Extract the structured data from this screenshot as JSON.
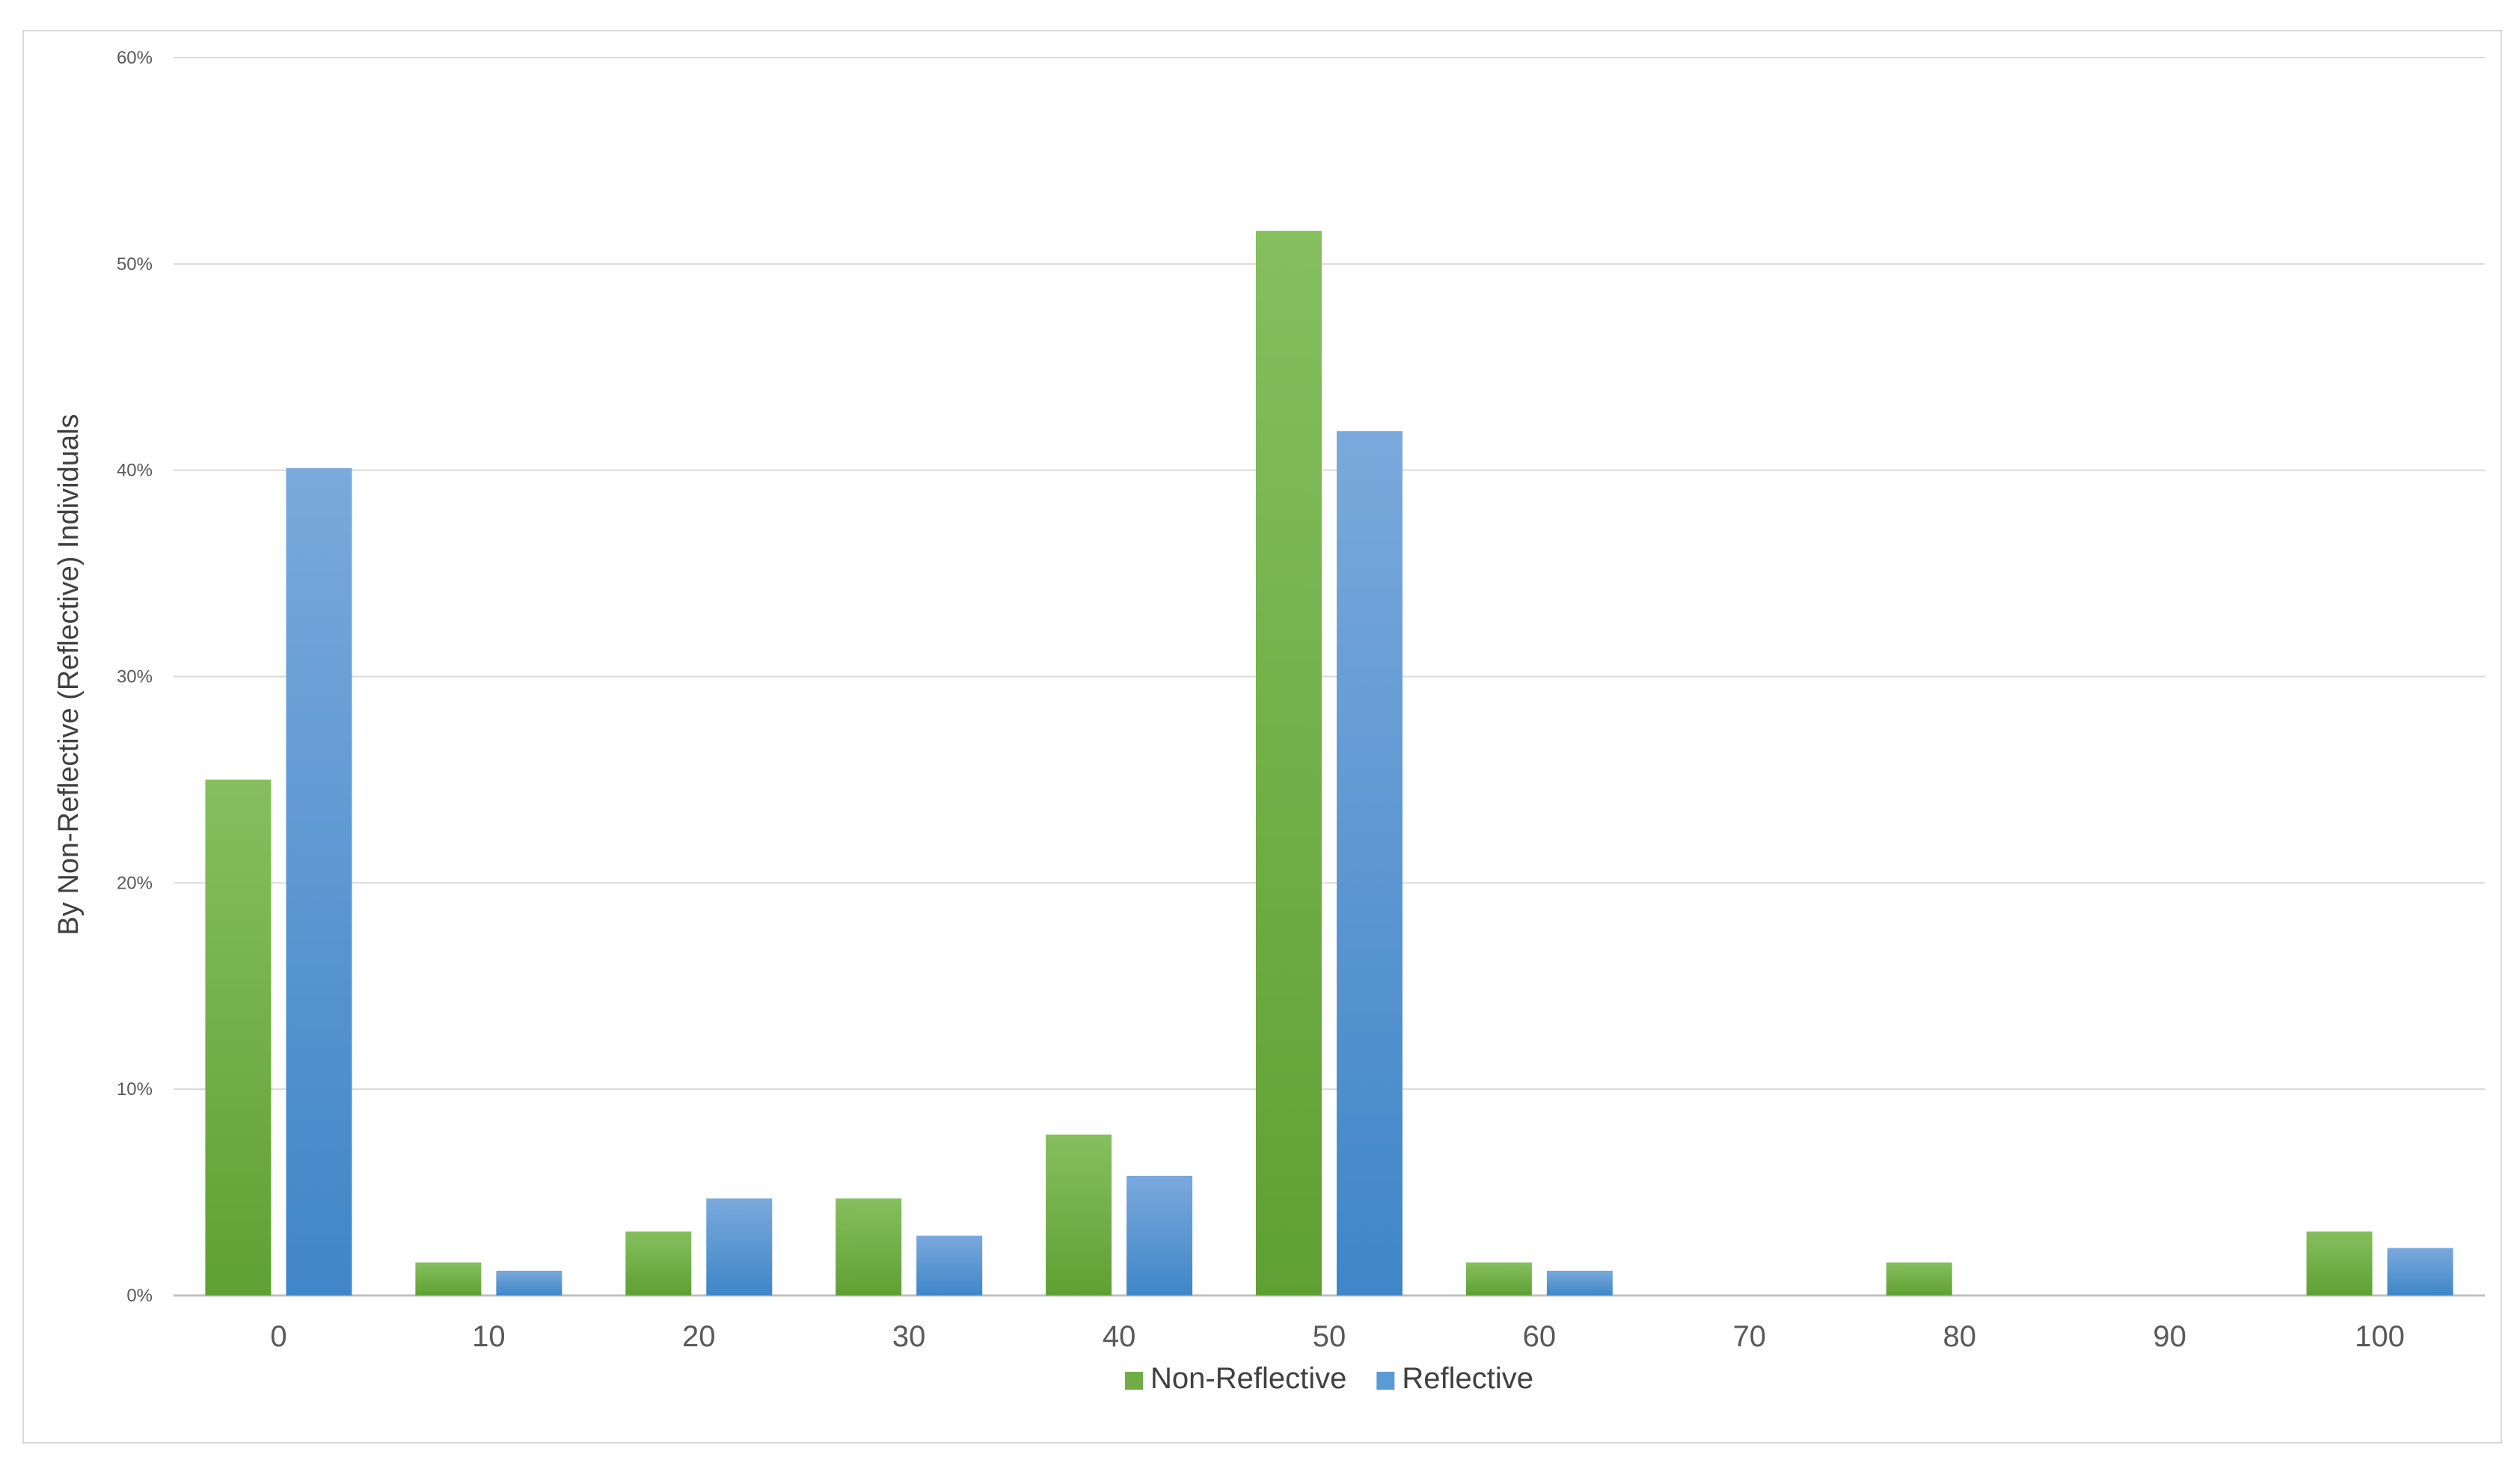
{
  "chart_data": {
    "type": "bar",
    "title": "",
    "xlabel": "",
    "ylabel": "By Non-Reflective (Reflective) Individuals",
    "categories": [
      "0",
      "10",
      "20",
      "30",
      "40",
      "50",
      "60",
      "70",
      "80",
      "90",
      "100"
    ],
    "series": [
      {
        "name": "Non-Reflective",
        "color": "#70ad47",
        "values": [
          25.0,
          1.6,
          3.1,
          4.7,
          7.8,
          51.6,
          1.6,
          0.0,
          1.6,
          0.0,
          3.1
        ]
      },
      {
        "name": "Reflective",
        "color": "#5b9bd5",
        "values": [
          40.1,
          1.2,
          4.7,
          2.9,
          5.8,
          41.9,
          1.2,
          0.0,
          0.0,
          0.0,
          2.3
        ]
      }
    ],
    "ylim": [
      0,
      60
    ],
    "yticks": [
      0,
      10,
      20,
      30,
      40,
      50,
      60
    ],
    "ytick_labels": [
      "0%",
      "10%",
      "20%",
      "30%",
      "40%",
      "50%",
      "60%"
    ],
    "grid": true,
    "legend_position": "bottom"
  }
}
